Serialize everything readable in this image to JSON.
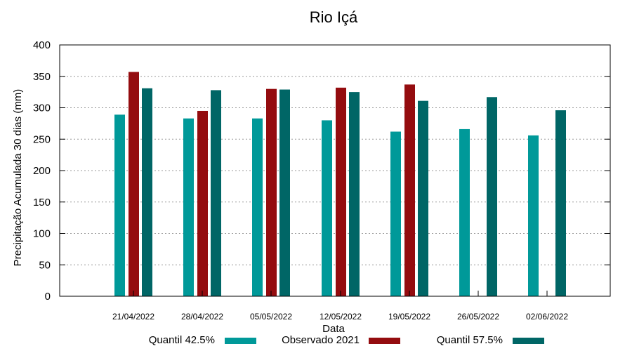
{
  "chart_data": {
    "type": "bar",
    "title": "Rio Içá",
    "xlabel": "Data",
    "ylabel": "Precipitação Acumulada 30 dias (mm)",
    "ylim": [
      0,
      400
    ],
    "yticks": [
      0,
      50,
      100,
      150,
      200,
      250,
      300,
      350,
      400
    ],
    "grid": true,
    "legend_position": "bottom",
    "categories": [
      "21/04/2022",
      "28/04/2022",
      "05/05/2022",
      "12/05/2022",
      "19/05/2022",
      "26/05/2022",
      "02/06/2022"
    ],
    "series": [
      {
        "name": "Quantil 42.5%",
        "color": "#009999",
        "values": [
          289,
          283,
          283,
          280,
          262,
          266,
          256
        ]
      },
      {
        "name": "Observado 2021",
        "color": "#940c0f",
        "values": [
          357,
          295,
          330,
          332,
          337,
          null,
          null
        ]
      },
      {
        "name": "Quantil 57.5%",
        "color": "#006666",
        "values": [
          331,
          328,
          329,
          325,
          311,
          317,
          296
        ]
      }
    ]
  }
}
